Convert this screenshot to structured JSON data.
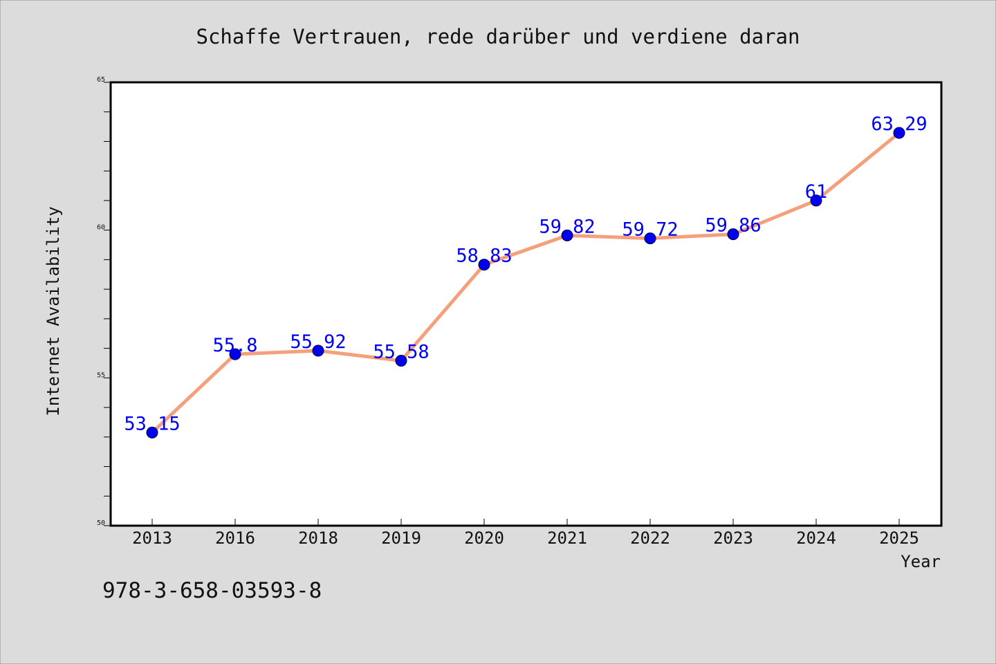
{
  "chart_data": {
    "type": "line",
    "title": "Schaffe Vertrauen, rede darüber und verdiene daran",
    "xlabel": "Year",
    "ylabel": "Internet Availability",
    "categories": [
      "2013",
      "2016",
      "2018",
      "2019",
      "2020",
      "2021",
      "2022",
      "2023",
      "2024",
      "2025"
    ],
    "series": [
      {
        "values": [
          53.15,
          55.8,
          55.92,
          55.58,
          58.83,
          59.82,
          59.72,
          59.86,
          61,
          63.29
        ],
        "data_labels": [
          "53.15",
          "55.8",
          "55.92",
          "55.58",
          "58.83",
          "59.82",
          "59.72",
          "59.86",
          "61",
          "63.29"
        ]
      }
    ],
    "ylim": [
      50,
      65
    ],
    "y_ticks": [
      "50",
      "55",
      "60",
      "65"
    ],
    "grid": false,
    "line_color": "#f4a07c",
    "marker_color": "#0000ee",
    "label_color": "#0000ee"
  },
  "footer": {
    "isbn": "978-3-658-03593-8"
  }
}
